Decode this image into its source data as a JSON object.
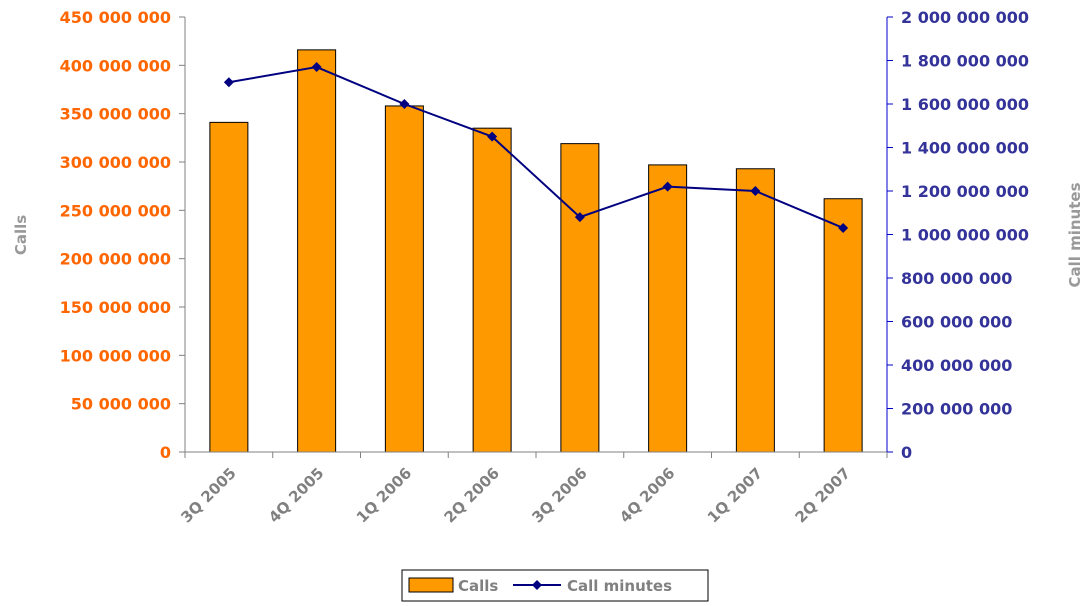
{
  "chart_data": {
    "type": "bar",
    "categories": [
      "3Q 2005",
      "4Q 2005",
      "1Q 2006",
      "2Q 2006",
      "3Q 2006",
      "4Q 2006",
      "1Q 2007",
      "2Q 2007"
    ],
    "series": [
      {
        "name": "Calls",
        "type": "bar",
        "axis": "left",
        "color": "#ff9900",
        "values": [
          341000000,
          416000000,
          358000000,
          335000000,
          319000000,
          297000000,
          293000000,
          262000000
        ]
      },
      {
        "name": "Call minutes",
        "type": "line",
        "axis": "right",
        "color": "#000080",
        "values": [
          1700000000,
          1770000000,
          1600000000,
          1450000000,
          1080000000,
          1220000000,
          1200000000,
          1030000000
        ]
      }
    ],
    "ylabel_left": "Calls",
    "ylabel_right": "Call minutes",
    "ylim_left": [
      0,
      450000000
    ],
    "ylim_right": [
      0,
      2000000000
    ],
    "yticks_left": [
      "0",
      "50 000 000",
      "100 000 000",
      "150 000 000",
      "200 000 000",
      "250 000 000",
      "300 000 000",
      "350 000 000",
      "400 000 000",
      "450 000 000"
    ],
    "yticks_right": [
      "0",
      "200 000 000",
      "400 000 000",
      "600 000 000",
      "800 000 000",
      "1 000 000 000",
      "1 200 000 000",
      "1 400 000 000",
      "1 600 000 000",
      "1 800 000 000",
      "2 000 000 000"
    ],
    "grid": false,
    "legend_position": "bottom",
    "colors": {
      "left_axis_text": "#ff6600",
      "right_axis_text": "#333399",
      "right_axis_line": "#0000cc",
      "category_text": "#808080",
      "axis_title_text": "#999999"
    }
  }
}
